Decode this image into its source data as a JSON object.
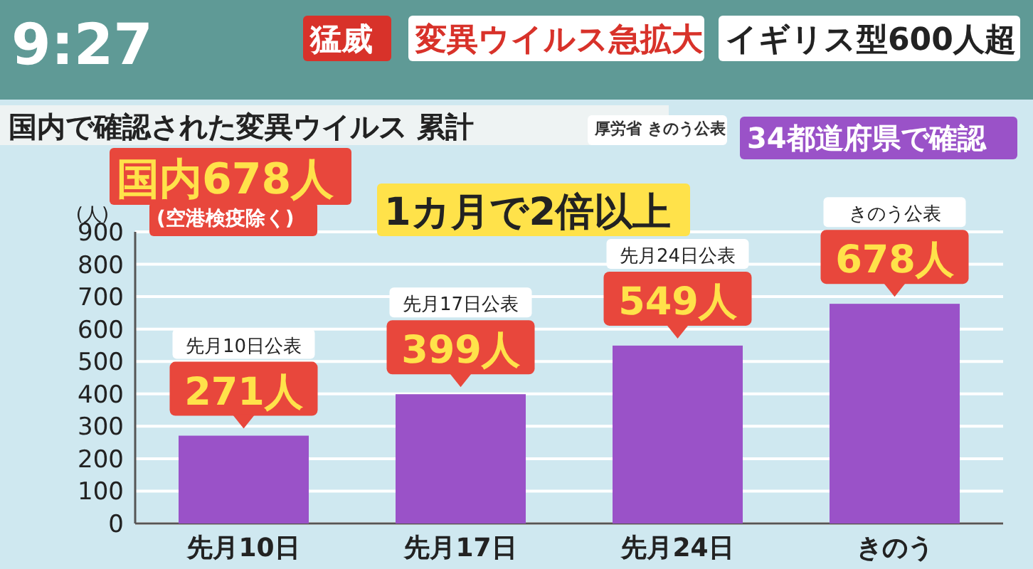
{
  "chart_data": {
    "type": "bar",
    "title": "国内で確認された変異ウイルス 累計",
    "ylabel": "(人)",
    "categories": [
      "先月10日",
      "先月17日",
      "先月24日",
      "きのう"
    ],
    "values": [
      271,
      399,
      549,
      678
    ],
    "value_labels": [
      "271人",
      "399人",
      "549人",
      "678人"
    ],
    "color": "#9a52c8",
    "ylim": [
      0,
      900
    ],
    "yticks": [
      0,
      100,
      200,
      300,
      400,
      500,
      600,
      700,
      800,
      900
    ],
    "grid": "y",
    "annotations": [
      "9:27",
      "猛威",
      "変異ウイルス急拡大",
      "イギリス型600人超",
      "厚労省 きのう公表",
      "国内678人",
      "(空港検疫除く)",
      "1カ月で2倍以上",
      "34都道府県で確認",
      "先月10日公表",
      "先月17日公表",
      "先月24日公表",
      "きのう公表"
    ]
  }
}
